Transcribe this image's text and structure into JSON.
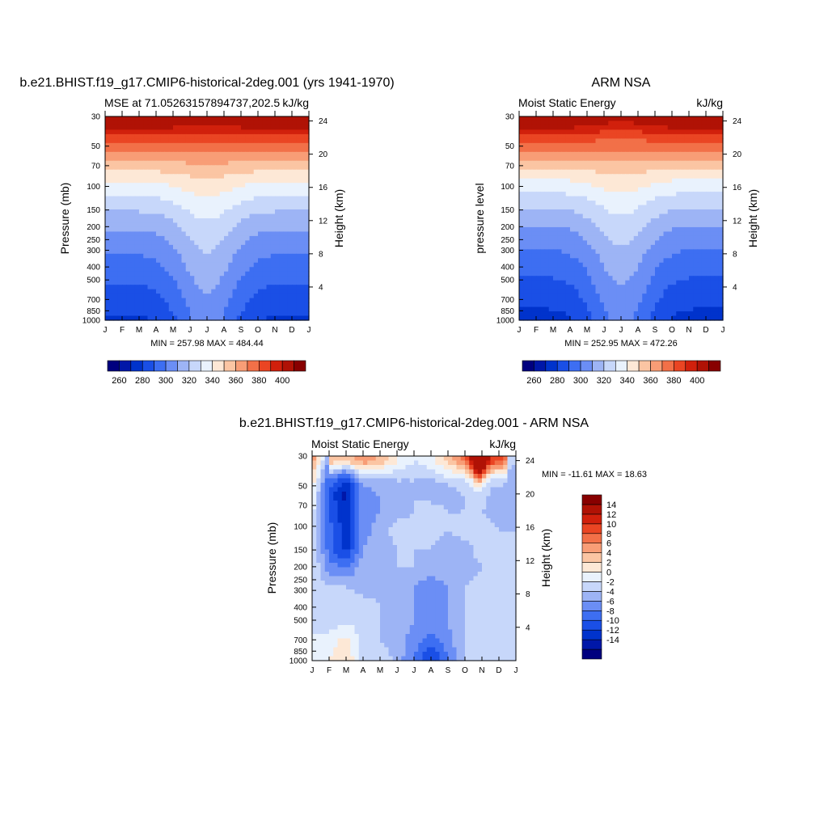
{
  "palette": [
    "#00007f",
    "#0017a8",
    "#0033cc",
    "#1a4fe6",
    "#3d6ef2",
    "#6b8ef5",
    "#9db4f5",
    "#c7d7fa",
    "#e9f2fd",
    "#fde8d6",
    "#fbc5a3",
    "#f89d76",
    "#f27048",
    "#ea4523",
    "#d1200c",
    "#b01205",
    "#880000"
  ],
  "charts": [
    {
      "super_title": "b.e21.BHIST.f19_g17.CMIP6-historical-2deg.001 (yrs 1941-1970)",
      "left_title": "MSE at 71.05263157894737,202.5",
      "right_title": "kJ/kg",
      "ylabel": "Pressure (mb)",
      "ylabel_right": "Height (km)",
      "minmax": "MIN = 257.98 MAX = 484.44"
    },
    {
      "super_title": "ARM NSA",
      "left_title": "Moist Static Energy",
      "right_title": "kJ/kg",
      "ylabel": "pressure level",
      "ylabel_right": "Height (km)",
      "minmax": "MIN = 252.95 MAX = 472.26"
    },
    {
      "super_title": "b.e21.BHIST.f19_g17.CMIP6-historical-2deg.001 - ARM NSA",
      "left_title": "Moist Static Energy",
      "right_title": "kJ/kg",
      "ylabel": "Pressure (mb)",
      "ylabel_right": "Height (km)",
      "minmax": "MIN = -11.61 MAX =  18.63"
    }
  ],
  "chart_data": [
    {
      "type": "heatmap",
      "title": "MSE at 71.05263157894737,202.5",
      "x": [
        "J",
        "F",
        "M",
        "A",
        "M",
        "J",
        "J",
        "A",
        "S",
        "O",
        "N",
        "D",
        "J"
      ],
      "y_pressure": [
        30,
        50,
        70,
        100,
        150,
        200,
        250,
        300,
        400,
        500,
        700,
        850,
        1000
      ],
      "y_height_km": [
        4,
        8,
        12,
        16,
        20,
        24
      ],
      "units": "kJ/kg",
      "min": 257.98,
      "max": 484.44,
      "levels": [
        260,
        270,
        280,
        290,
        300,
        310,
        320,
        330,
        340,
        350,
        360,
        370,
        380,
        390,
        400
      ],
      "colorbar_labels": [
        "260",
        "280",
        "300",
        "320",
        "340",
        "360",
        "380",
        "400"
      ]
    },
    {
      "type": "heatmap",
      "title": "Moist Static Energy",
      "x": [
        "J",
        "F",
        "M",
        "A",
        "M",
        "J",
        "J",
        "A",
        "S",
        "O",
        "N",
        "D",
        "J"
      ],
      "y_pressure": [
        30,
        50,
        70,
        100,
        150,
        200,
        250,
        300,
        400,
        500,
        700,
        850,
        1000
      ],
      "y_height_km": [
        4,
        8,
        12,
        16,
        20,
        24
      ],
      "units": "kJ/kg",
      "min": 252.95,
      "max": 472.26,
      "levels": [
        260,
        270,
        280,
        290,
        300,
        310,
        320,
        330,
        340,
        350,
        360,
        370,
        380,
        390,
        400
      ],
      "colorbar_labels": [
        "260",
        "280",
        "300",
        "320",
        "340",
        "360",
        "380",
        "400"
      ]
    },
    {
      "type": "heatmap",
      "title": "Moist Static Energy",
      "x": [
        "J",
        "F",
        "M",
        "A",
        "M",
        "J",
        "J",
        "A",
        "S",
        "O",
        "N",
        "D",
        "J"
      ],
      "y_pressure": [
        30,
        50,
        70,
        100,
        150,
        200,
        250,
        300,
        400,
        500,
        700,
        850,
        1000
      ],
      "y_height_km": [
        4,
        8,
        12,
        16,
        20,
        24
      ],
      "units": "kJ/kg",
      "min": -11.61,
      "max": 18.63,
      "levels": [
        -14,
        -12,
        -10,
        -8,
        -6,
        -4,
        -2,
        0,
        2,
        4,
        6,
        8,
        10,
        12,
        14
      ],
      "colorbar_labels": [
        "14",
        "12",
        "10",
        "8",
        "6",
        "4",
        "2",
        "0",
        "-2",
        "-4",
        "-6",
        "-8",
        "-10",
        "-12",
        "-14"
      ]
    }
  ]
}
